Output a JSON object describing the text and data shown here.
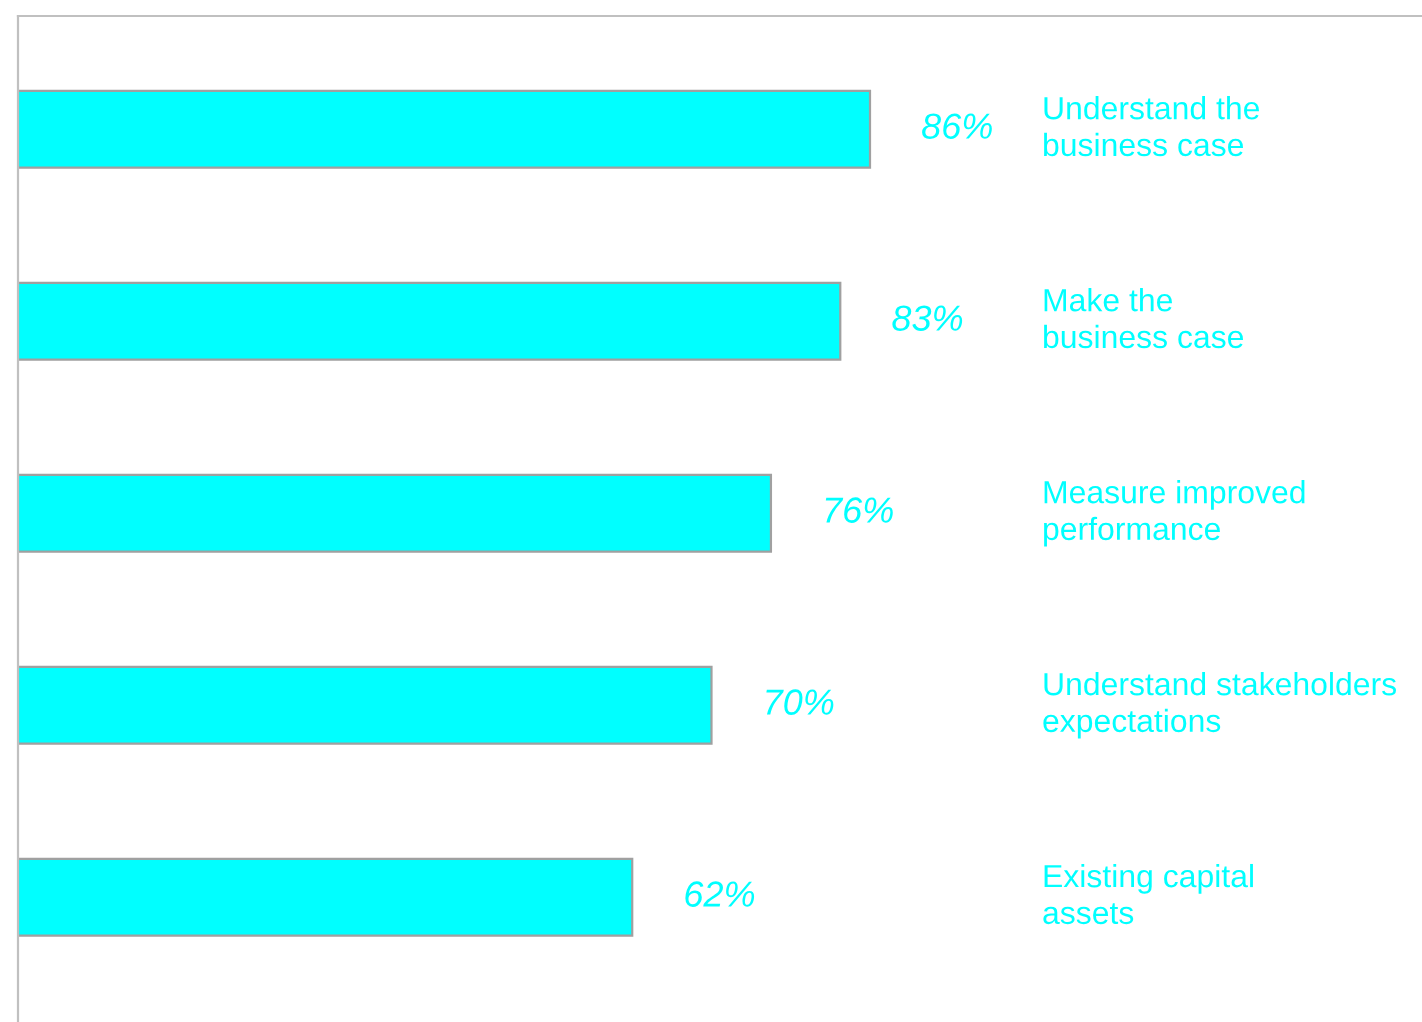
{
  "chart_data": {
    "type": "bar",
    "orientation": "horizontal",
    "categories": [
      "Understand the\nbusiness case",
      "Make the\nbusiness case",
      "Measure improved\nperformance",
      "Understand stakeholders\nexpectations",
      "Existing capital\nassets"
    ],
    "values": [
      86,
      83,
      76,
      70,
      62
    ],
    "color": "#00ffff",
    "value_labels": [
      "86%",
      "83%",
      "76%",
      "70%",
      "62%"
    ],
    "legend": false
  }
}
